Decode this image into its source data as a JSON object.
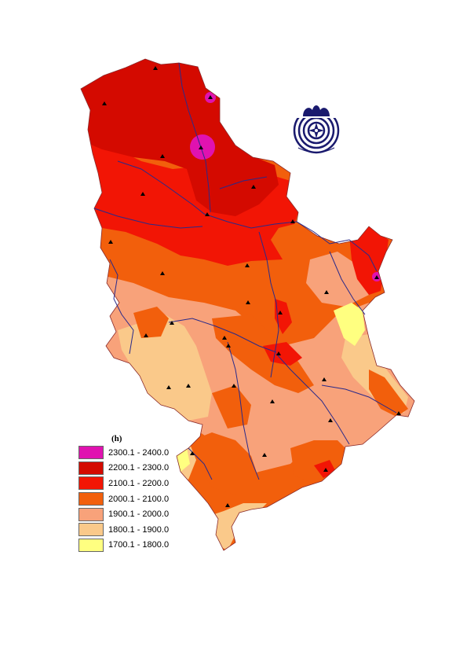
{
  "legend": {
    "unit": "(h)",
    "classes": [
      {
        "label": "2300.1 - 2400.0",
        "color": "#e012b0"
      },
      {
        "label": "2200.1 - 2300.0",
        "color": "#d40a00"
      },
      {
        "label": "2100.1 - 2200.0",
        "color": "#f21505"
      },
      {
        "label": "2000.1 - 2100.0",
        "color": "#f25f0c"
      },
      {
        "label": "1900.1 - 2000.0",
        "color": "#f8a27a"
      },
      {
        "label": "1800.1 - 1900.0",
        "color": "#fac98a"
      },
      {
        "label": "1700.1 - 1800.0",
        "color": "#ffff80"
      }
    ]
  },
  "map": {
    "river_color": "#2a2a8a",
    "station_icon": "triangle-icon",
    "logo_icon": "hydrometeorological-service-logo-icon"
  }
}
